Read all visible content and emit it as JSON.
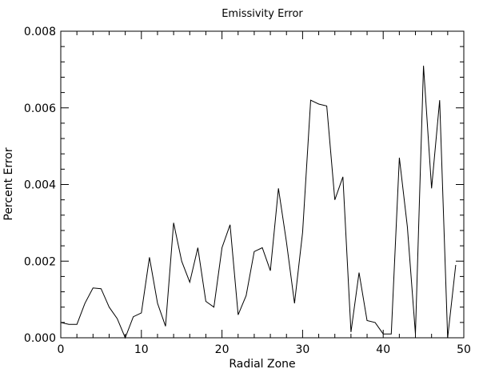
{
  "chart_data": {
    "type": "line",
    "title": "Emissivity Error",
    "xlabel": "Radial Zone",
    "ylabel": "Percent Error",
    "xlim": [
      0,
      50
    ],
    "ylim": [
      0,
      0.008
    ],
    "xticks": [
      "0",
      "10",
      "20",
      "30",
      "40",
      "50"
    ],
    "yticks": [
      "0.000",
      "0.002",
      "0.004",
      "0.006",
      "0.008"
    ],
    "grid": false,
    "series": [
      {
        "x": [
          0,
          1,
          2,
          3,
          4,
          5,
          6,
          7,
          8,
          9,
          10,
          11,
          12,
          13,
          14,
          15,
          16,
          17,
          18,
          19,
          20,
          21,
          22,
          23,
          24,
          25,
          26,
          27,
          28,
          29,
          30,
          31,
          32,
          33,
          34,
          35,
          36,
          37,
          38,
          39,
          40,
          41,
          42,
          43,
          44,
          45,
          46,
          47,
          48,
          49
        ],
        "y": [
          0.0004,
          0.00035,
          0.00035,
          0.0009,
          0.0013,
          0.00128,
          0.0008,
          0.0005,
          0.0,
          0.00055,
          0.00065,
          0.0021,
          0.0009,
          0.0003,
          0.003,
          0.002,
          0.00145,
          0.00235,
          0.00095,
          0.0008,
          0.00235,
          0.00295,
          0.0006,
          0.0011,
          0.00225,
          0.00235,
          0.00175,
          0.0039,
          0.0025,
          0.0009,
          0.00275,
          0.0062,
          0.0061,
          0.00605,
          0.0036,
          0.0042,
          0.00015,
          0.0017,
          0.00045,
          0.0004,
          0.0001,
          0.0001,
          0.0047,
          0.0029,
          0.0001,
          0.0071,
          0.0039,
          0.0062,
          0.0,
          0.0019
        ]
      }
    ]
  },
  "colors": {
    "line": "#000000",
    "background": "#ffffff"
  }
}
